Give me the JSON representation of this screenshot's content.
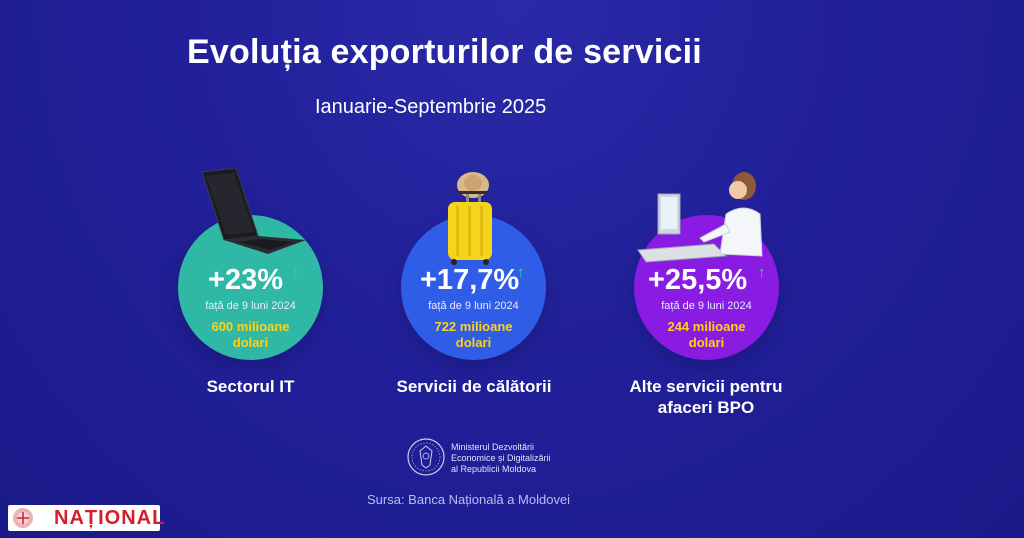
{
  "header": {
    "title": "Evoluția exporturilor de servicii",
    "period": "Ianuarie-Septembrie 2025"
  },
  "cards": [
    {
      "percent": "+23%",
      "compare": "față de 9 luni 2024",
      "amount_line1": "600 milioane",
      "amount_line2": "dolari",
      "label_line1": "Sectorul IT",
      "label_line2": "",
      "color": "#2fb8a6"
    },
    {
      "percent": "+17,7%",
      "compare": "față de 9 luni 2024",
      "amount_line1": "722 milioane",
      "amount_line2": "dolari",
      "label_line1": "Servicii de călătorii",
      "label_line2": "",
      "color": "#2f5de8"
    },
    {
      "percent": "+25,5%",
      "compare": "față de 9 luni 2024",
      "amount_line1": "244 milioane",
      "amount_line2": "dolari",
      "label_line1": "Alte servicii pentru",
      "label_line2": "afaceri BPO",
      "color": "#8a1be3"
    }
  ],
  "ministry": {
    "line1": "Ministerul Dezvoltării",
    "line2": "Economice și Digitalizării",
    "line3": "al Republicii Moldova"
  },
  "source": "Sursa: Banca Națională a Moldovei",
  "brand": {
    "name": "NAȚIONAL"
  },
  "colors": {
    "background": "#21209a",
    "accent_yellow": "#ffd21a",
    "arrow_green": "#2fe06a",
    "brand_red": "#d61f2c"
  }
}
